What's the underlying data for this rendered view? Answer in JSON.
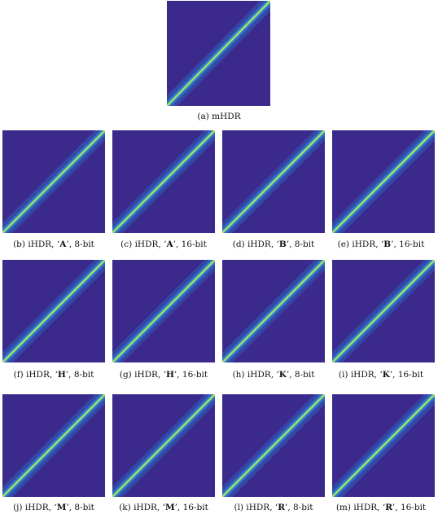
{
  "colors": {
    "background": "#3b2a8c",
    "diagonal_core": "#f4e83a",
    "diagonal_mid": "#3fc0b6",
    "diagonal_outer": "#2b7fd6"
  },
  "panels": [
    {
      "id": "a",
      "label": "(a)",
      "method": "mHDR",
      "model": "",
      "bits": ""
    },
    {
      "id": "b",
      "label": "(b)",
      "method": "iHDR, ",
      "model": "A",
      "bits": ", 8-bit"
    },
    {
      "id": "c",
      "label": "(c)",
      "method": "iHDR, ",
      "model": "A",
      "bits": ", 16-bit"
    },
    {
      "id": "d",
      "label": "(d)",
      "method": "iHDR, ",
      "model": "B",
      "bits": ", 8-bit"
    },
    {
      "id": "e",
      "label": "(e)",
      "method": "iHDR, ",
      "model": "B",
      "bits": ", 16-bit"
    },
    {
      "id": "f",
      "label": "(f)",
      "method": "iHDR, ",
      "model": "H",
      "bits": ", 8-bit"
    },
    {
      "id": "g",
      "label": "(g)",
      "method": "iHDR, ",
      "model": "H",
      "bits": ", 16-bit"
    },
    {
      "id": "h",
      "label": "(h)",
      "method": "iHDR, ",
      "model": "K",
      "bits": ", 8-bit"
    },
    {
      "id": "i",
      "label": "(i)",
      "method": "iHDR, ",
      "model": "K",
      "bits": ", 16-bit"
    },
    {
      "id": "j",
      "label": "(j)",
      "method": "iHDR, ",
      "model": "M",
      "bits": ", 8-bit"
    },
    {
      "id": "k",
      "label": "(k)",
      "method": "iHDR, ",
      "model": "M",
      "bits": ", 16-bit"
    },
    {
      "id": "l",
      "label": "(l)",
      "method": "iHDR, ",
      "model": "R",
      "bits": ", 8-bit"
    },
    {
      "id": "m",
      "label": "(m)",
      "method": "iHDR, ",
      "model": "R",
      "bits": ", 16-bit"
    }
  ]
}
